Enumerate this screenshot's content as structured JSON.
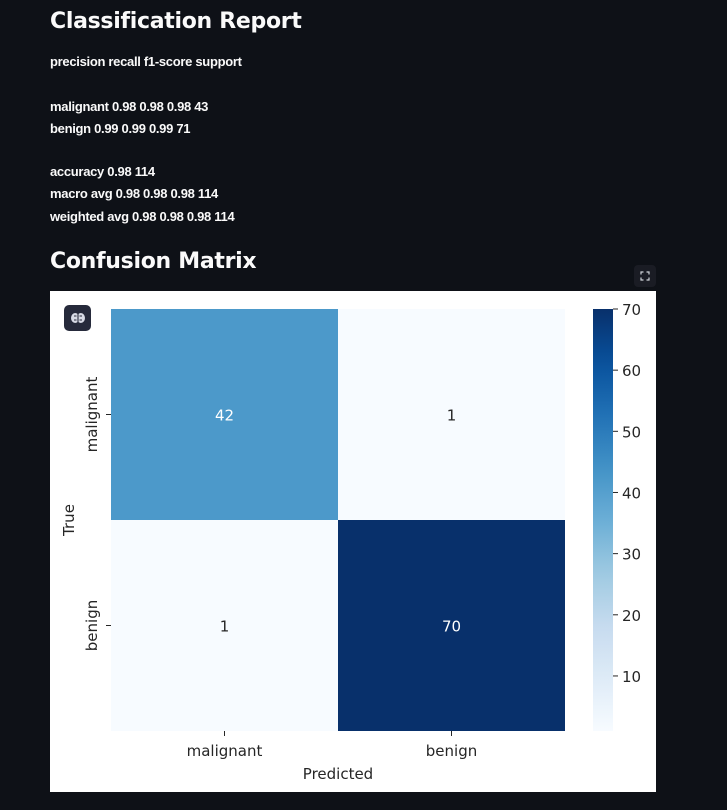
{
  "report": {
    "title": "Classification Report",
    "header": "precision recall f1-score support",
    "rows": [
      "malignant 0.98 0.98 0.98 43",
      "benign 0.99 0.99 0.99 71",
      "accuracy 0.98 114",
      "macro avg 0.98 0.98 0.98 114",
      "weighted avg 0.98 0.98 0.98 114"
    ]
  },
  "confusion": {
    "title": "Confusion Matrix",
    "icons": {
      "fullscreen": "fullscreen-icon",
      "badge": "brain-icon"
    }
  },
  "chart_data": {
    "type": "heatmap",
    "x_categories": [
      "malignant",
      "benign"
    ],
    "y_categories": [
      "malignant",
      "benign"
    ],
    "values": [
      [
        42,
        1
      ],
      [
        1,
        70
      ]
    ],
    "xlabel": "Predicted",
    "ylabel": "True",
    "colormap": "Blues",
    "colorbar": {
      "min": 1,
      "max": 70,
      "ticks": [
        10,
        20,
        30,
        40,
        50,
        60,
        70
      ]
    },
    "colors": {
      "low": "#f7fbff",
      "mid": "#4a98c9",
      "high": "#08306b"
    }
  }
}
